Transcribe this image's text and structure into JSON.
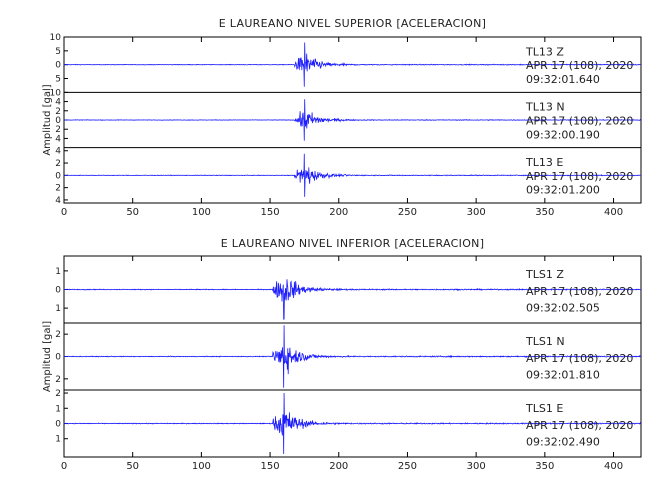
{
  "chart_data": [
    {
      "type": "line",
      "title": "E LAUREANO NIVEL SUPERIOR [ACELERACION]",
      "ylabel": "Amplitud [gal]",
      "xlim": [
        0,
        420
      ],
      "x_ticks": [
        0,
        50,
        100,
        150,
        200,
        250,
        300,
        350,
        400
      ],
      "panels": [
        {
          "station": "TL13",
          "channel": "Z",
          "date": "APR 17 (108), 2020",
          "time": "09:32:01.640",
          "ylim": [
            -10,
            10
          ],
          "y_ticks": [
            -10,
            -5,
            0,
            5,
            10
          ],
          "y_tick_labels": [
            "10",
            "5",
            "0",
            "5",
            "10"
          ],
          "onset_s": 168,
          "peak_s": 175,
          "peak_amp": 8
        },
        {
          "station": "TL13",
          "channel": "N",
          "date": "APR 17 (108), 2020",
          "time": "09:32:00.190",
          "ylim": [
            -6,
            6
          ],
          "y_ticks": [
            -4,
            -2,
            0,
            2,
            4
          ],
          "y_tick_labels": [
            "4",
            "2",
            "0",
            "2",
            "4"
          ],
          "onset_s": 168,
          "peak_s": 175,
          "peak_amp": 4.5
        },
        {
          "station": "TL13",
          "channel": "E",
          "date": "APR 17 (108), 2020",
          "time": "09:32:01.200",
          "ylim": [
            -4.5,
            4.5
          ],
          "y_ticks": [
            -4,
            -2,
            0,
            2,
            4
          ],
          "y_tick_labels": [
            "4",
            "2",
            "0",
            "2",
            "4"
          ],
          "onset_s": 168,
          "peak_s": 175,
          "peak_amp": 3.5
        }
      ]
    },
    {
      "type": "line",
      "title": "E LAUREANO NIVEL INFERIOR [ACELERACION]",
      "ylabel": "Amplitud [gal]",
      "xlim": [
        0,
        420
      ],
      "x_ticks": [
        0,
        50,
        100,
        150,
        200,
        250,
        300,
        350,
        400
      ],
      "panels": [
        {
          "station": "TLS1",
          "channel": "Z",
          "date": "APR 17 (108), 2020",
          "time": "09:32:02.505",
          "ylim": [
            -1.8,
            1.8
          ],
          "y_ticks": [
            -1,
            0,
            1
          ],
          "y_tick_labels": [
            "1",
            "0",
            "1"
          ],
          "onset_s": 152,
          "peak_s": 160,
          "peak_amp": 1.6
        },
        {
          "station": "TLS1",
          "channel": "N",
          "date": "APR 17 (108), 2020",
          "time": "09:32:01.810",
          "ylim": [
            -3,
            3
          ],
          "y_ticks": [
            -2,
            0,
            2
          ],
          "y_tick_labels": [
            "2",
            "0",
            "2"
          ],
          "onset_s": 152,
          "peak_s": 160,
          "peak_amp": 2.8
        },
        {
          "station": "TLS1",
          "channel": "E",
          "date": "APR 17 (108), 2020",
          "time": "09:32:02.490",
          "ylim": [
            -2.2,
            2.2
          ],
          "y_ticks": [
            -1,
            0,
            1,
            2
          ],
          "y_tick_labels": [
            "1",
            "0",
            "1",
            "2"
          ],
          "onset_s": 152,
          "peak_s": 160,
          "peak_amp": 2
        }
      ]
    }
  ],
  "colors": {
    "trace": "#1c1cff",
    "axis": "#000000",
    "text": "#222222"
  }
}
